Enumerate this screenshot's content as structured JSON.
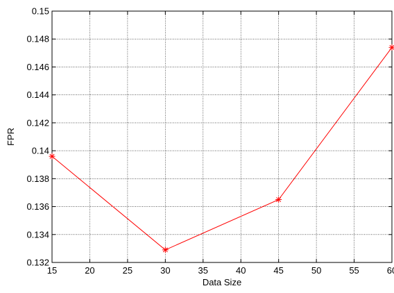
{
  "chart_data": {
    "type": "line",
    "title": "",
    "xlabel": "Data Size",
    "ylabel": "FPR",
    "xlim": [
      15,
      60
    ],
    "ylim": [
      0.132,
      0.15
    ],
    "xticks": [
      15,
      20,
      25,
      30,
      35,
      40,
      45,
      50,
      55,
      60
    ],
    "yticks": [
      0.132,
      0.134,
      0.136,
      0.138,
      0.14,
      0.142,
      0.144,
      0.146,
      0.148,
      0.15
    ],
    "xtick_labels": [
      "15",
      "20",
      "25",
      "30",
      "35",
      "40",
      "45",
      "50",
      "55",
      "60"
    ],
    "ytick_labels": [
      "0.132",
      "0.134",
      "0.136",
      "0.138",
      "0.14",
      "0.142",
      "0.144",
      "0.146",
      "0.148",
      "0.15"
    ],
    "grid": true,
    "series": [
      {
        "x": [
          15,
          30,
          45,
          60
        ],
        "y": [
          0.1396,
          0.1329,
          0.1365,
          0.1474
        ],
        "color": "#ff0000",
        "marker": "asterisk"
      }
    ]
  }
}
